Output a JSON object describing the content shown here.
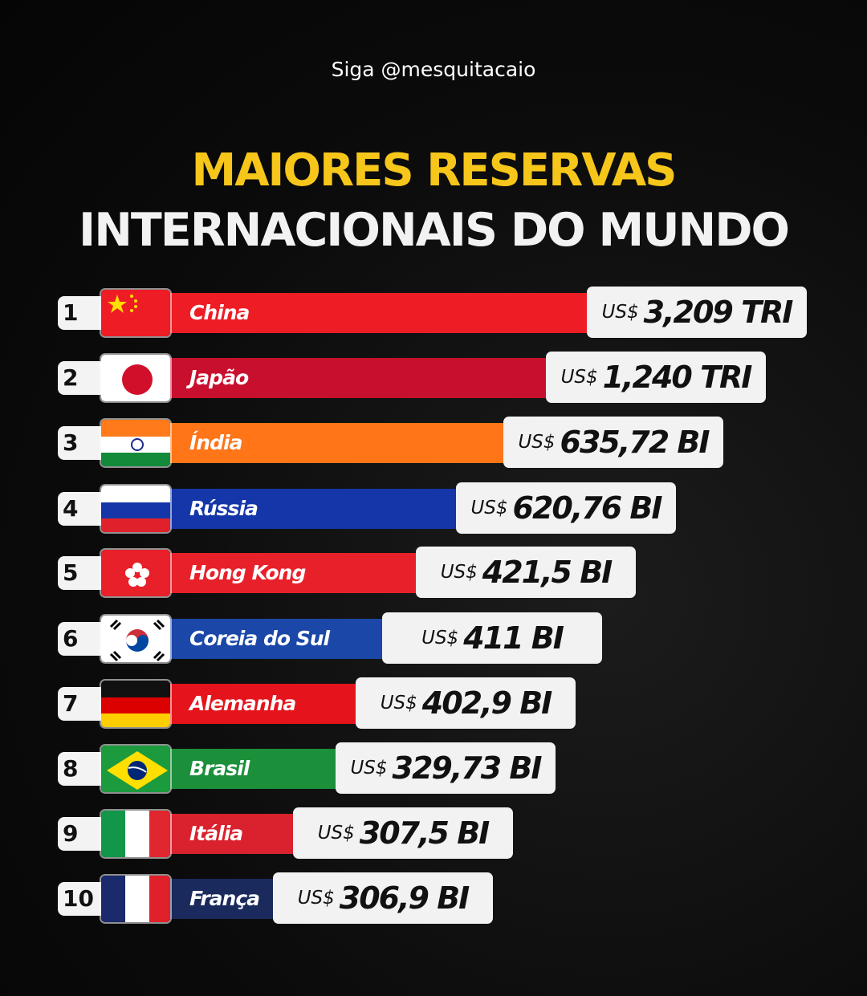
{
  "header": {
    "handle": "Siga @mesquitacaio"
  },
  "chart_data": {
    "type": "bar",
    "title_line1": "MAIORES RESERVAS",
    "title_line2": "INTERNACIONAIS DO MUNDO",
    "currency": "US$",
    "categories": [
      "China",
      "Japão",
      "Índia",
      "Rússia",
      "Hong Kong",
      "Coreia do Sul",
      "Alemanha",
      "Brasil",
      "Itália",
      "França"
    ],
    "values_usd_billion": [
      3209,
      1240,
      635.72,
      620.76,
      421.5,
      411,
      402.9,
      329.73,
      307.5,
      306.9
    ],
    "rows": [
      {
        "rank": "1",
        "country": "China",
        "currency": "US$",
        "value": "3,209 TRI",
        "color": "#ee1c25",
        "flag": "china-flag"
      },
      {
        "rank": "2",
        "country": "Japão",
        "currency": "US$",
        "value": "1,240 TRI",
        "color": "#c8102e",
        "flag": "japan-flag"
      },
      {
        "rank": "3",
        "country": "Índia",
        "currency": "US$",
        "value": "635,72 BI",
        "color": "#ff7518",
        "flag": "india-flag"
      },
      {
        "rank": "4",
        "country": "Rússia",
        "currency": "US$",
        "value": "620,76 BI",
        "color": "#1536a8",
        "flag": "russia-flag"
      },
      {
        "rank": "5",
        "country": "Hong Kong",
        "currency": "US$",
        "value": "421,5 BI",
        "color": "#e8202a",
        "flag": "hong-kong-flag"
      },
      {
        "rank": "6",
        "country": "Coreia do Sul",
        "currency": "US$",
        "value": "411 BI",
        "color": "#1a47a8",
        "flag": "south-korea-flag"
      },
      {
        "rank": "7",
        "country": "Alemanha",
        "currency": "US$",
        "value": "402,9 BI",
        "color": "#e5141c",
        "flag": "germany-flag"
      },
      {
        "rank": "8",
        "country": "Brasil",
        "currency": "US$",
        "value": "329,73 BI",
        "color": "#1b8f3a",
        "flag": "brazil-flag"
      },
      {
        "rank": "9",
        "country": "Itália",
        "currency": "US$",
        "value": "307,5 BI",
        "color": "#d9222e",
        "flag": "italy-flag"
      },
      {
        "rank": "10",
        "country": "França",
        "currency": "US$",
        "value": "306,9 BI",
        "color": "#1b2a5c",
        "flag": "france-flag"
      }
    ]
  }
}
